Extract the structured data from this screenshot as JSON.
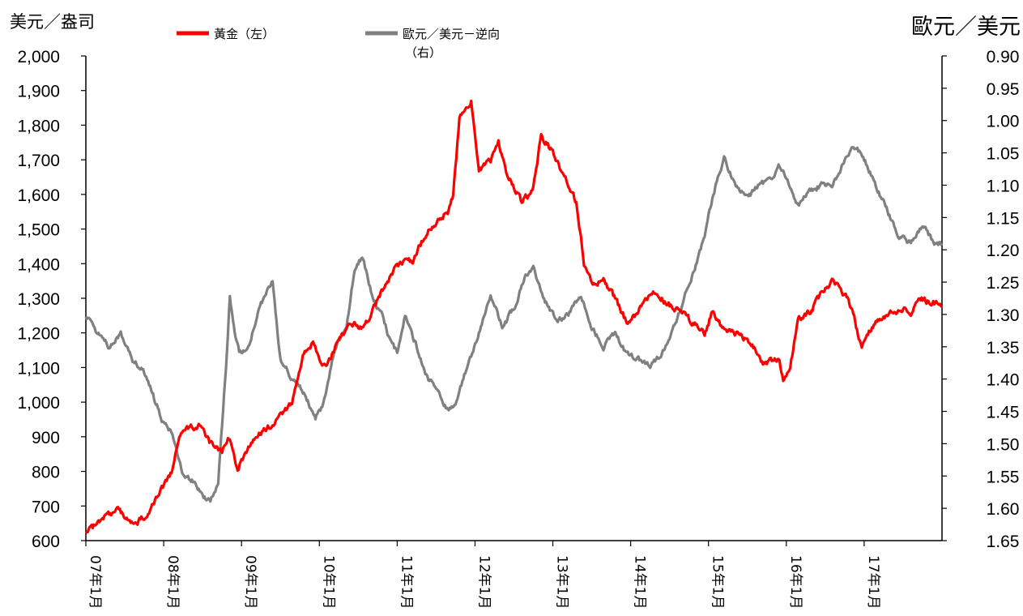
{
  "chart_data": {
    "type": "line",
    "left_axis_unit": "美元／盎司",
    "right_axis_unit": "歐元／美元",
    "legend": [
      {
        "label": "黃金（左）",
        "color": "#ff0000"
      },
      {
        "label": "歐元／美元－逆向",
        "label_line2": "（右）",
        "color": "#808080"
      }
    ],
    "x_ticks": [
      "07年1月",
      "08年1月",
      "09年1月",
      "10年1月",
      "11年1月",
      "12年1月",
      "13年1月",
      "14年1月",
      "15年1月",
      "16年1月",
      "17年1月"
    ],
    "x_range": [
      2007.0,
      2018.0
    ],
    "y_left": {
      "range": [
        600,
        2000
      ],
      "ticks": [
        "600",
        "700",
        "800",
        "900",
        "1,000",
        "1,100",
        "1,200",
        "1,300",
        "1,400",
        "1,500",
        "1,600",
        "1,700",
        "1,800",
        "1,900",
        "2,000"
      ]
    },
    "y_right": {
      "range": [
        1.65,
        0.9
      ],
      "reversed": true,
      "ticks": [
        "0.90",
        "0.95",
        "1.00",
        "1.05",
        "1.10",
        "1.15",
        "1.20",
        "1.25",
        "1.30",
        "1.35",
        "1.40",
        "1.45",
        "1.50",
        "1.55",
        "1.60",
        "1.65"
      ]
    },
    "series": [
      {
        "name": "黃金（左）",
        "axis": "left",
        "color": "#ff0000",
        "x": [
          2007.0,
          2007.2,
          2007.4,
          2007.6,
          2007.75,
          2007.9,
          2008.1,
          2008.2,
          2008.3,
          2008.45,
          2008.6,
          2008.75,
          2008.85,
          2008.95,
          2009.05,
          2009.2,
          2009.35,
          2009.5,
          2009.65,
          2009.8,
          2009.92,
          2010.0,
          2010.1,
          2010.25,
          2010.4,
          2010.55,
          2010.7,
          2010.85,
          2010.95,
          2011.05,
          2011.2,
          2011.35,
          2011.5,
          2011.65,
          2011.72,
          2011.8,
          2011.95,
          2012.05,
          2012.2,
          2012.3,
          2012.4,
          2012.5,
          2012.6,
          2012.7,
          2012.75,
          2012.85,
          2013.0,
          2013.15,
          2013.25,
          2013.3,
          2013.4,
          2013.5,
          2013.65,
          2013.8,
          2013.95,
          2014.1,
          2014.25,
          2014.4,
          2014.5,
          2014.65,
          2014.8,
          2014.95,
          2015.05,
          2015.2,
          2015.35,
          2015.5,
          2015.6,
          2015.7,
          2015.8,
          2015.9,
          2015.96,
          2016.05,
          2016.15,
          2016.3,
          2016.5,
          2016.6,
          2016.8,
          2016.92,
          2016.97,
          2017.1,
          2017.3,
          2017.5,
          2017.6,
          2017.7,
          2017.85,
          2018.0
        ],
        "values": [
          620,
          660,
          690,
          650,
          665,
          720,
          800,
          900,
          930,
          930,
          880,
          860,
          900,
          800,
          860,
          900,
          930,
          960,
          1000,
          1140,
          1170,
          1120,
          1100,
          1180,
          1230,
          1210,
          1270,
          1340,
          1380,
          1400,
          1410,
          1480,
          1520,
          1550,
          1600,
          1820,
          1870,
          1670,
          1700,
          1750,
          1660,
          1620,
          1580,
          1600,
          1620,
          1770,
          1720,
          1650,
          1600,
          1580,
          1400,
          1340,
          1350,
          1300,
          1230,
          1260,
          1320,
          1300,
          1280,
          1260,
          1230,
          1200,
          1260,
          1210,
          1200,
          1180,
          1150,
          1110,
          1120,
          1130,
          1070,
          1100,
          1240,
          1260,
          1330,
          1350,
          1300,
          1200,
          1160,
          1220,
          1250,
          1270,
          1260,
          1300,
          1290,
          1280
        ]
      },
      {
        "name": "歐元／美元－逆向（右）",
        "axis": "right",
        "color": "#808080",
        "x": [
          2007.0,
          2007.15,
          2007.3,
          2007.45,
          2007.6,
          2007.75,
          2007.85,
          2008.0,
          2008.1,
          2008.25,
          2008.4,
          2008.5,
          2008.6,
          2008.7,
          2008.8,
          2008.85,
          2008.9,
          2008.97,
          2009.1,
          2009.2,
          2009.3,
          2009.4,
          2009.5,
          2009.65,
          2009.8,
          2009.95,
          2010.05,
          2010.2,
          2010.35,
          2010.45,
          2010.55,
          2010.7,
          2010.8,
          2010.9,
          2011.0,
          2011.1,
          2011.25,
          2011.4,
          2011.5,
          2011.65,
          2011.75,
          2011.9,
          2012.05,
          2012.2,
          2012.35,
          2012.5,
          2012.65,
          2012.75,
          2012.9,
          2013.05,
          2013.2,
          2013.35,
          2013.5,
          2013.65,
          2013.8,
          2013.95,
          2014.1,
          2014.25,
          2014.4,
          2014.55,
          2014.7,
          2014.85,
          2014.95,
          2015.05,
          2015.12,
          2015.2,
          2015.35,
          2015.5,
          2015.65,
          2015.8,
          2015.9,
          2016.0,
          2016.15,
          2016.3,
          2016.45,
          2016.6,
          2016.75,
          2016.85,
          2016.95,
          2017.0,
          2017.15,
          2017.3,
          2017.45,
          2017.6,
          2017.75,
          2017.9,
          2018.0
        ],
        "values": [
          1.3,
          1.33,
          1.35,
          1.33,
          1.37,
          1.39,
          1.42,
          1.47,
          1.48,
          1.55,
          1.56,
          1.58,
          1.59,
          1.56,
          1.38,
          1.27,
          1.32,
          1.36,
          1.35,
          1.3,
          1.27,
          1.25,
          1.37,
          1.4,
          1.42,
          1.46,
          1.44,
          1.35,
          1.32,
          1.23,
          1.21,
          1.28,
          1.3,
          1.34,
          1.36,
          1.3,
          1.35,
          1.4,
          1.41,
          1.45,
          1.44,
          1.38,
          1.33,
          1.27,
          1.32,
          1.29,
          1.24,
          1.23,
          1.28,
          1.31,
          1.3,
          1.27,
          1.32,
          1.35,
          1.33,
          1.36,
          1.37,
          1.38,
          1.36,
          1.32,
          1.27,
          1.22,
          1.18,
          1.12,
          1.09,
          1.06,
          1.1,
          1.12,
          1.1,
          1.09,
          1.07,
          1.09,
          1.13,
          1.11,
          1.1,
          1.1,
          1.06,
          1.04,
          1.05,
          1.06,
          1.1,
          1.14,
          1.18,
          1.19,
          1.16,
          1.19,
          1.19
        ]
      }
    ]
  }
}
